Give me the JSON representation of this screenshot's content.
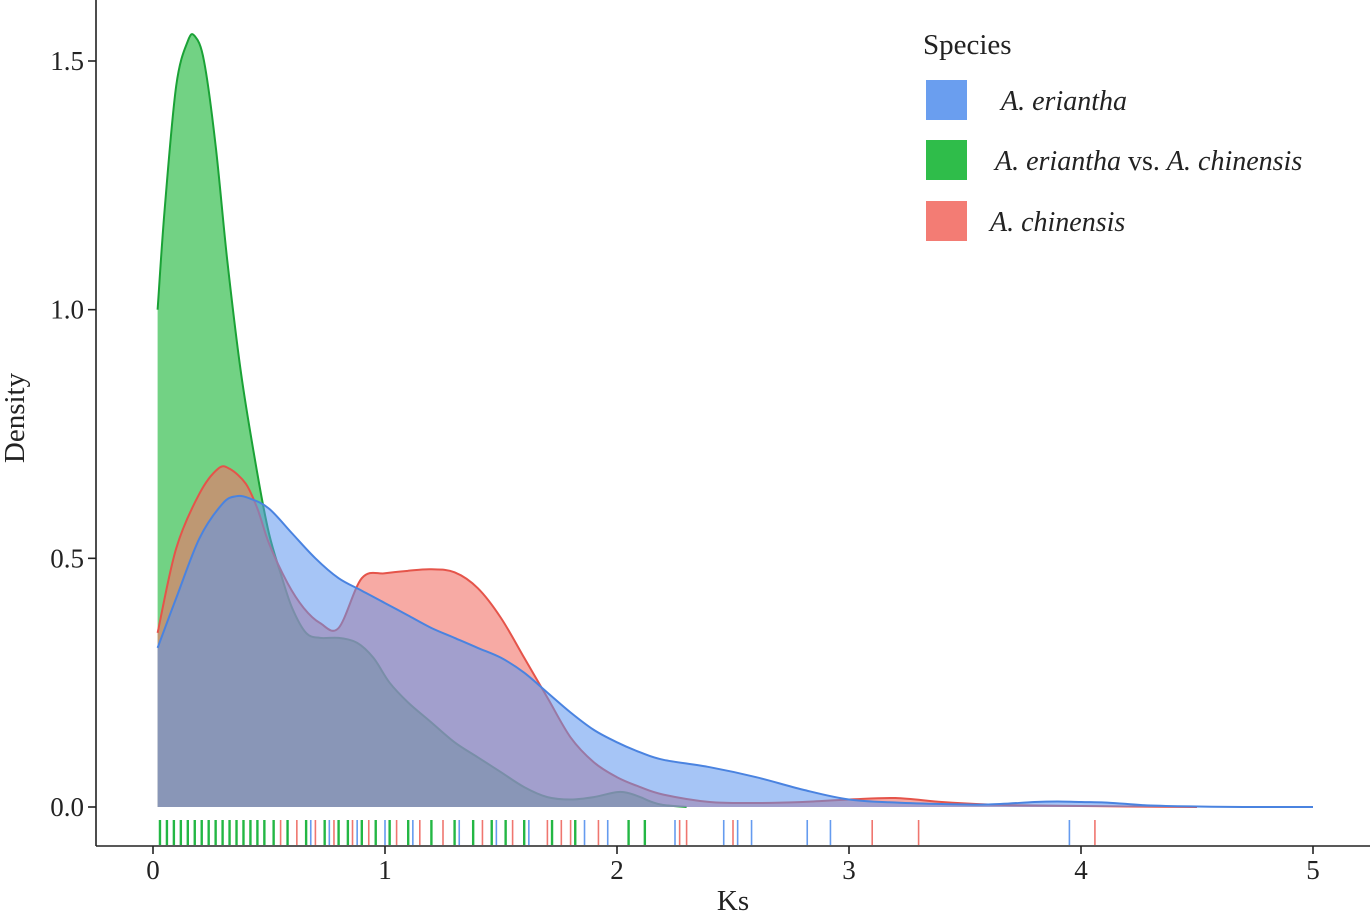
{
  "chart_data": {
    "type": "area",
    "title": "",
    "xlabel": "Ks",
    "ylabel": "Density",
    "xlim": [
      -0.05,
      5.12
    ],
    "ylim": [
      -0.075,
      1.62
    ],
    "xticks": [
      0,
      1,
      2,
      3,
      4,
      5
    ],
    "xtick_labels": [
      "0",
      "1",
      "2",
      "3",
      "4",
      "5"
    ],
    "yticks": [
      0.0,
      0.5,
      1.0,
      1.5
    ],
    "ytick_labels": [
      "0.0",
      "0.5",
      "1.0",
      "1.5"
    ],
    "grid": false,
    "legend": {
      "title": "Species",
      "placement": "top-right",
      "entries": [
        {
          "key": "eriantha",
          "parts": [
            {
              "text": "A. eriantha",
              "italic": true
            }
          ]
        },
        {
          "key": "vs",
          "parts": [
            {
              "text": "A. eriantha",
              "italic": true
            },
            {
              "text": " vs. ",
              "italic": false
            },
            {
              "text": "A. chinensis",
              "italic": true
            }
          ]
        },
        {
          "key": "chinensis",
          "parts": [
            {
              "text": "A. chinensis",
              "italic": true
            }
          ]
        }
      ]
    },
    "series": [
      {
        "key": "vs",
        "name": "A. eriantha vs. A. chinensis",
        "fill": "#2fbd4a",
        "stroke": "#1aa236",
        "opacity": 0.68,
        "x": [
          0.02,
          0.05,
          0.1,
          0.15,
          0.18,
          0.22,
          0.27,
          0.32,
          0.38,
          0.45,
          0.5,
          0.55,
          0.6,
          0.66,
          0.72,
          0.8,
          0.88,
          0.95,
          1.02,
          1.1,
          1.2,
          1.3,
          1.4,
          1.5,
          1.6,
          1.7,
          1.8,
          1.9,
          2.0,
          2.05,
          2.1,
          2.15,
          2.2,
          2.3
        ],
        "y": [
          1.0,
          1.2,
          1.45,
          1.54,
          1.55,
          1.5,
          1.33,
          1.1,
          0.87,
          0.67,
          0.55,
          0.47,
          0.4,
          0.35,
          0.34,
          0.34,
          0.33,
          0.3,
          0.25,
          0.21,
          0.17,
          0.13,
          0.1,
          0.07,
          0.04,
          0.02,
          0.015,
          0.02,
          0.03,
          0.028,
          0.02,
          0.01,
          0.004,
          0.0
        ]
      },
      {
        "key": "chinensis",
        "name": "A. chinensis",
        "fill": "#f27168",
        "stroke": "#e5544a",
        "opacity": 0.6,
        "x": [
          0.02,
          0.1,
          0.2,
          0.28,
          0.33,
          0.4,
          0.45,
          0.5,
          0.58,
          0.65,
          0.72,
          0.8,
          0.9,
          1.0,
          1.1,
          1.2,
          1.3,
          1.4,
          1.5,
          1.6,
          1.7,
          1.8,
          1.9,
          2.0,
          2.1,
          2.2,
          2.4,
          2.6,
          2.8,
          3.0,
          3.2,
          3.4,
          3.6,
          3.8,
          4.0,
          4.2,
          4.5
        ],
        "y": [
          0.35,
          0.52,
          0.63,
          0.68,
          0.68,
          0.65,
          0.6,
          0.53,
          0.45,
          0.4,
          0.37,
          0.36,
          0.46,
          0.47,
          0.475,
          0.478,
          0.472,
          0.44,
          0.38,
          0.3,
          0.22,
          0.14,
          0.09,
          0.06,
          0.04,
          0.025,
          0.01,
          0.008,
          0.01,
          0.015,
          0.018,
          0.01,
          0.005,
          0.003,
          0.002,
          0.001,
          0.0
        ]
      },
      {
        "key": "eriantha",
        "name": "A. eriantha",
        "fill": "#5d96ee",
        "stroke": "#4a83e0",
        "opacity": 0.55,
        "x": [
          0.02,
          0.1,
          0.2,
          0.3,
          0.36,
          0.42,
          0.5,
          0.6,
          0.7,
          0.8,
          0.9,
          1.0,
          1.1,
          1.2,
          1.3,
          1.4,
          1.5,
          1.6,
          1.7,
          1.8,
          1.9,
          2.0,
          2.1,
          2.2,
          2.4,
          2.6,
          2.8,
          3.0,
          3.2,
          3.4,
          3.6,
          3.8,
          3.9,
          4.0,
          4.1,
          4.2,
          4.3,
          4.5,
          4.7,
          5.0
        ],
        "y": [
          0.32,
          0.42,
          0.54,
          0.61,
          0.625,
          0.62,
          0.6,
          0.55,
          0.5,
          0.46,
          0.435,
          0.41,
          0.385,
          0.36,
          0.34,
          0.32,
          0.3,
          0.27,
          0.23,
          0.19,
          0.155,
          0.13,
          0.11,
          0.095,
          0.08,
          0.06,
          0.035,
          0.015,
          0.009,
          0.006,
          0.005,
          0.01,
          0.011,
          0.01,
          0.009,
          0.006,
          0.003,
          0.001,
          0.0,
          0.0
        ]
      }
    ],
    "rug": {
      "vs": [
        0.03,
        0.06,
        0.09,
        0.12,
        0.15,
        0.18,
        0.21,
        0.24,
        0.27,
        0.3,
        0.33,
        0.36,
        0.39,
        0.42,
        0.45,
        0.48,
        0.52,
        0.58,
        0.66,
        0.74,
        0.8,
        0.84,
        0.9,
        0.96,
        1.02,
        1.1,
        1.2,
        1.3,
        1.38,
        1.46,
        1.52,
        1.6,
        1.72,
        1.82,
        2.05,
        2.12
      ],
      "chinensis": [
        0.55,
        0.62,
        0.7,
        0.78,
        0.86,
        0.93,
        1.05,
        1.15,
        1.25,
        1.42,
        1.55,
        1.7,
        1.76,
        1.8,
        1.92,
        2.27,
        2.3,
        2.5,
        3.1,
        3.3,
        4.06
      ],
      "eriantha": [
        0.58,
        0.68,
        0.76,
        0.88,
        1.0,
        1.12,
        1.32,
        1.48,
        1.62,
        1.86,
        1.96,
        2.25,
        2.46,
        2.52,
        2.58,
        2.82,
        2.92,
        3.95
      ]
    }
  }
}
